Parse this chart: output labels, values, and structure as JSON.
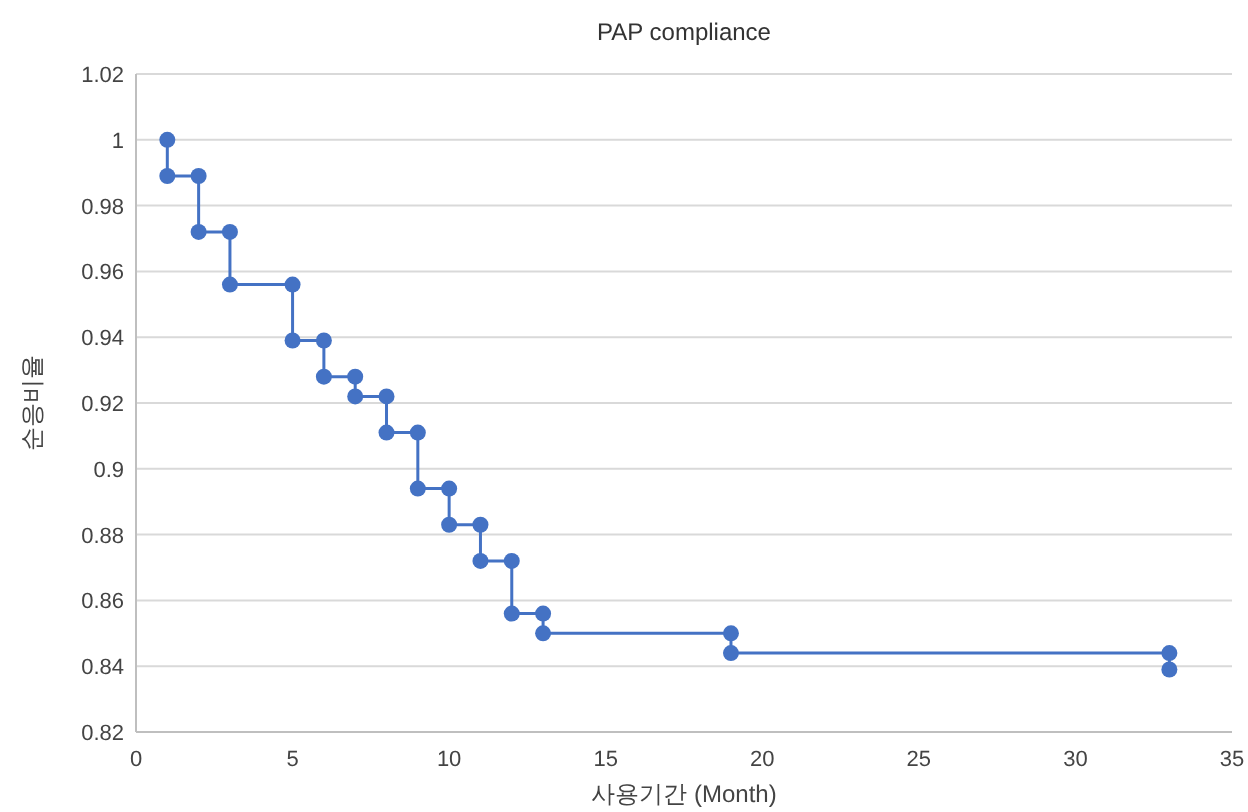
{
  "chart_data": {
    "type": "line",
    "title": "PAP compliance",
    "xlabel": "사용기간 (Month)",
    "ylabel": "순응비율",
    "x": [
      1,
      1,
      2,
      2,
      3,
      3,
      5,
      5,
      6,
      6,
      7,
      7,
      8,
      8,
      9,
      9,
      10,
      10,
      11,
      11,
      12,
      12,
      13,
      13,
      19,
      19,
      33,
      33
    ],
    "values": [
      1.0,
      0.989,
      0.989,
      0.972,
      0.972,
      0.956,
      0.956,
      0.939,
      0.939,
      0.928,
      0.928,
      0.922,
      0.922,
      0.911,
      0.911,
      0.894,
      0.894,
      0.883,
      0.883,
      0.872,
      0.872,
      0.856,
      0.856,
      0.85,
      0.85,
      0.844,
      0.844,
      0.839
    ],
    "color": "#4472c4",
    "marker": "circle",
    "line_style": "solid",
    "xlim": [
      0,
      35
    ],
    "xticks": [
      0,
      5,
      10,
      15,
      20,
      25,
      30,
      35
    ],
    "ylim": [
      0.82,
      1.02
    ],
    "yticks": [
      0.82,
      0.84,
      0.86,
      0.88,
      0.9,
      0.92,
      0.94,
      0.96,
      0.98,
      1,
      1.02
    ],
    "grid": "y"
  }
}
